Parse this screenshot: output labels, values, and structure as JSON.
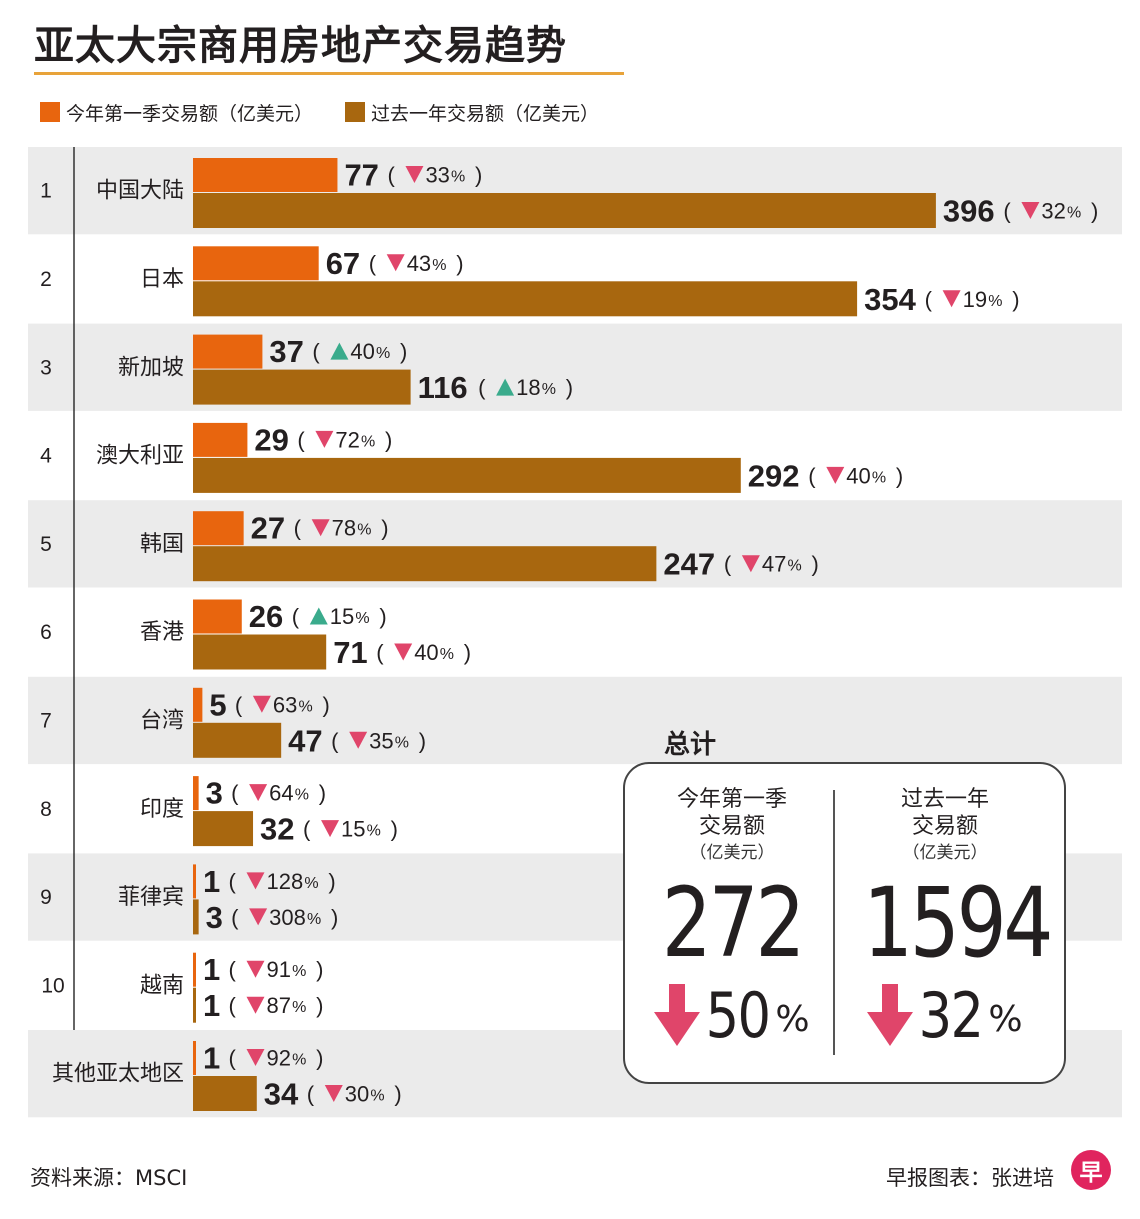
{
  "title": "亚太大宗商用房地产交易趋势",
  "legend": [
    {
      "label": "今年第一季交易额（亿美元）",
      "color": "#e8650e"
    },
    {
      "label": "过去一年交易额（亿美元）",
      "color": "#a8670f"
    }
  ],
  "chart_data": {
    "type": "bar",
    "orientation": "horizontal",
    "title": "亚太大宗商用房地产交易趋势",
    "categories": [
      "中国大陆",
      "日本",
      "新加坡",
      "澳大利亚",
      "韩国",
      "香港",
      "台湾",
      "印度",
      "菲律宾",
      "越南",
      "其他亚太地区"
    ],
    "ranks": [
      "1",
      "2",
      "3",
      "4",
      "5",
      "6",
      "7",
      "8",
      "9",
      "10",
      ""
    ],
    "series": [
      {
        "name": "今年第一季交易额（亿美元）",
        "color": "#e8650e",
        "values": [
          77,
          67,
          37,
          29,
          27,
          26,
          5,
          3,
          1,
          1,
          1
        ],
        "changes": [
          {
            "dir": "down",
            "pct": "33"
          },
          {
            "dir": "down",
            "pct": "43"
          },
          {
            "dir": "up",
            "pct": "40"
          },
          {
            "dir": "down",
            "pct": "72"
          },
          {
            "dir": "down",
            "pct": "78"
          },
          {
            "dir": "up",
            "pct": "15"
          },
          {
            "dir": "down",
            "pct": "63"
          },
          {
            "dir": "down",
            "pct": "64"
          },
          {
            "dir": "down",
            "pct": "128"
          },
          {
            "dir": "down",
            "pct": "91"
          },
          {
            "dir": "down",
            "pct": "92"
          }
        ]
      },
      {
        "name": "过去一年交易额（亿美元）",
        "color": "#a8670f",
        "values": [
          396,
          354,
          116,
          292,
          247,
          71,
          47,
          32,
          3,
          1,
          34
        ],
        "changes": [
          {
            "dir": "down",
            "pct": "32"
          },
          {
            "dir": "down",
            "pct": "19"
          },
          {
            "dir": "up",
            "pct": "18"
          },
          {
            "dir": "down",
            "pct": "40"
          },
          {
            "dir": "down",
            "pct": "47"
          },
          {
            "dir": "down",
            "pct": "40"
          },
          {
            "dir": "down",
            "pct": "35"
          },
          {
            "dir": "down",
            "pct": "15"
          },
          {
            "dir": "down",
            "pct": "308"
          },
          {
            "dir": "down",
            "pct": "87"
          },
          {
            "dir": "down",
            "pct": "30"
          }
        ]
      }
    ],
    "grid": false,
    "legend_position": "top-left"
  },
  "colors": {
    "up": "#3aab8c",
    "down": "#e0456a",
    "row_shade": "#ebebeb",
    "big_arrow": "#e0456a"
  },
  "totals": {
    "heading": "总计",
    "q1": {
      "label_line1": "今年第一季",
      "label_line2": "交易额",
      "unit": "（亿美元）",
      "value": "272",
      "change": "50",
      "dir": "down"
    },
    "year": {
      "label_line1": "过去一年",
      "label_line2": "交易额",
      "unit": "（亿美元）",
      "value": "1594",
      "change": "32",
      "dir": "down"
    },
    "percent_sign": "%"
  },
  "footer": {
    "source": "资料来源：MSCI",
    "credit": "早报图表：张进培",
    "logo_text": "早"
  }
}
